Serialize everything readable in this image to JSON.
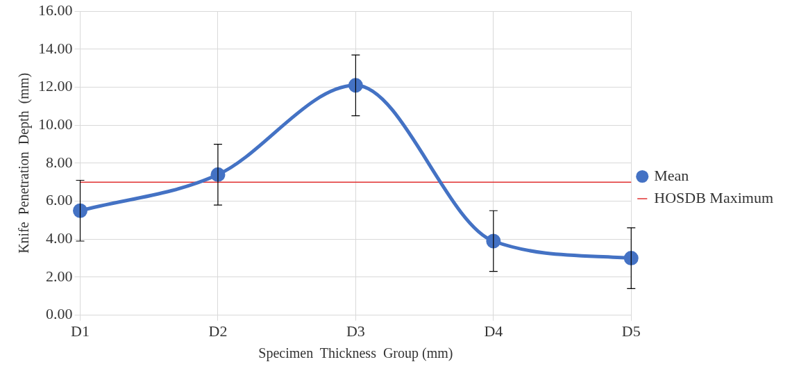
{
  "chart_data": {
    "type": "line",
    "xlabel": "Specimen  Thickness  Group (mm)",
    "ylabel": "Knife  Penetration  Depth  (mm)",
    "categories": [
      "D1",
      "D2",
      "D3",
      "D4",
      "D5"
    ],
    "series": [
      {
        "name": "Mean",
        "color": "#4472c4",
        "values": [
          5.5,
          7.4,
          12.1,
          3.9,
          3.0
        ],
        "errors": [
          1.6,
          1.6,
          1.6,
          1.6,
          1.6
        ]
      }
    ],
    "ylim": [
      0,
      16
    ],
    "yticks": [
      {
        "value": 0,
        "label": "0.00"
      },
      {
        "value": 2,
        "label": "2.00"
      },
      {
        "value": 4,
        "label": "4.00"
      },
      {
        "value": 6,
        "label": "6.00"
      },
      {
        "value": 8,
        "label": "8.00"
      },
      {
        "value": 10,
        "label": "10.00"
      },
      {
        "value": 12,
        "label": "12.00"
      },
      {
        "value": 14,
        "label": "14.00"
      },
      {
        "value": 16,
        "label": "16.00"
      }
    ],
    "ref_lines": [
      {
        "axis": "y",
        "value": 7,
        "label": "HOSDB Maximum",
        "color": "#e03030"
      }
    ],
    "grid": true,
    "legend": "right",
    "marker": "circle",
    "line_style": "solid"
  }
}
